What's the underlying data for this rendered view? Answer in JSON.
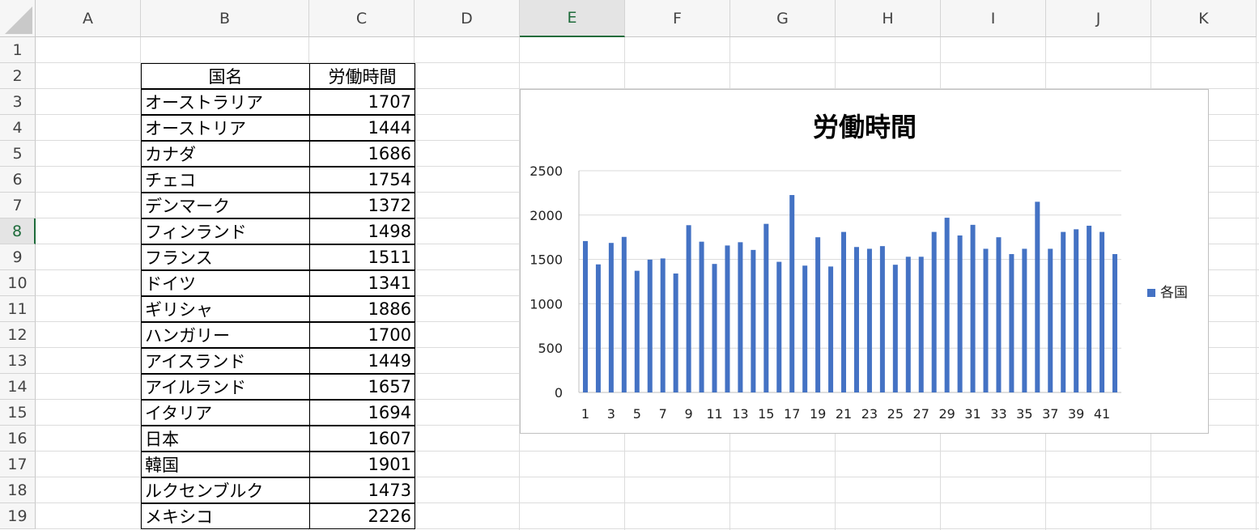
{
  "columns": [
    "A",
    "B",
    "C",
    "D",
    "E",
    "F",
    "G",
    "H",
    "I",
    "J",
    "K"
  ],
  "selected_column": "E",
  "rows": [
    "1",
    "2",
    "3",
    "4",
    "5",
    "6",
    "7",
    "8",
    "9",
    "10",
    "11",
    "12",
    "13",
    "14",
    "15",
    "16",
    "17",
    "18",
    "19"
  ],
  "selected_row": "8",
  "table": {
    "header": {
      "name": "国名",
      "hours": "労働時間"
    },
    "rows": [
      {
        "name": "オーストラリア",
        "hours": "1707"
      },
      {
        "name": "オーストリア",
        "hours": "1444"
      },
      {
        "name": "カナダ",
        "hours": "1686"
      },
      {
        "name": "チェコ",
        "hours": "1754"
      },
      {
        "name": "デンマーク",
        "hours": "1372"
      },
      {
        "name": "フィンランド",
        "hours": "1498"
      },
      {
        "name": "フランス",
        "hours": "1511"
      },
      {
        "name": "ドイツ",
        "hours": "1341"
      },
      {
        "name": "ギリシャ",
        "hours": "1886"
      },
      {
        "name": "ハンガリー",
        "hours": "1700"
      },
      {
        "name": "アイスランド",
        "hours": "1449"
      },
      {
        "name": "アイルランド",
        "hours": "1657"
      },
      {
        "name": "イタリア",
        "hours": "1694"
      },
      {
        "name": "日本",
        "hours": "1607"
      },
      {
        "name": "韓国",
        "hours": "1901"
      },
      {
        "name": "ルクセンブルク",
        "hours": "1473"
      },
      {
        "name": "メキシコ",
        "hours": "2226"
      }
    ]
  },
  "chart_data": {
    "type": "bar",
    "title": "労働時間",
    "xlabel": "",
    "ylabel": "",
    "ylim": [
      0,
      2500
    ],
    "yticks": [
      0,
      500,
      1000,
      1500,
      2000,
      2500
    ],
    "x": [
      1,
      2,
      3,
      4,
      5,
      6,
      7,
      8,
      9,
      10,
      11,
      12,
      13,
      14,
      15,
      16,
      17,
      18,
      19,
      20,
      21,
      22,
      23,
      24,
      25,
      26,
      27,
      28,
      29,
      30,
      31,
      32,
      33,
      34,
      35,
      36,
      37,
      38,
      39,
      40,
      41,
      42
    ],
    "xtick_labels": [
      "1",
      "3",
      "5",
      "7",
      "9",
      "11",
      "13",
      "15",
      "17",
      "19",
      "21",
      "23",
      "25",
      "27",
      "29",
      "31",
      "33",
      "35",
      "37",
      "39",
      "41"
    ],
    "series": [
      {
        "name": "各国",
        "values": [
          1707,
          1444,
          1686,
          1754,
          1372,
          1498,
          1511,
          1341,
          1886,
          1700,
          1449,
          1657,
          1694,
          1607,
          1901,
          1473,
          2226,
          1430,
          1750,
          1420,
          1810,
          1640,
          1620,
          1650,
          1440,
          1530,
          1530,
          1810,
          1970,
          1770,
          1890,
          1620,
          1750,
          1560,
          1620,
          2150,
          1620,
          1810,
          1840,
          1880,
          1810,
          1560
        ]
      }
    ],
    "legend_position": "right",
    "grid": true,
    "bar_color": "#4472c4"
  }
}
